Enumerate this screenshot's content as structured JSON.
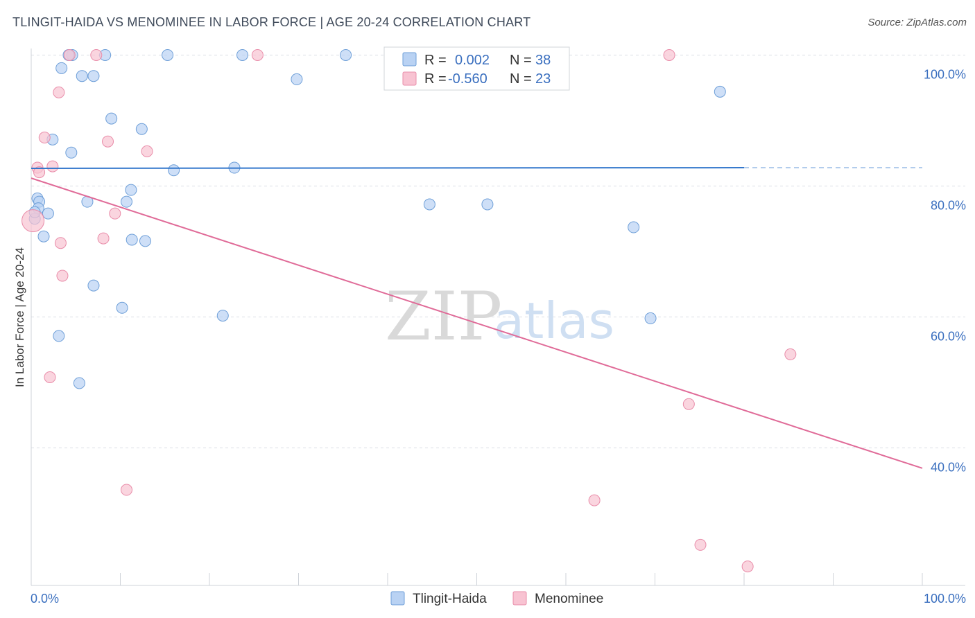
{
  "header": {
    "title": "TLINGIT-HAIDA VS MENOMINEE IN LABOR FORCE | AGE 20-24 CORRELATION CHART",
    "source": "Source: ZipAtlas.com"
  },
  "watermark": {
    "zip": "ZIP",
    "atlas": "atlas"
  },
  "colors": {
    "blue_fill": "#b9d2f3",
    "blue_stroke": "#6e9fd8",
    "blue_line": "#3377cc",
    "pink_fill": "#f8c3d2",
    "pink_stroke": "#e98ca9",
    "pink_line": "#e06b98",
    "grid": "#d9dde4",
    "tick_text": "#3a6fbf"
  },
  "legend": {
    "rows": [
      {
        "r_label": "R =",
        "r_value": "0.002",
        "n_label": "N =",
        "n_value": "38"
      },
      {
        "r_label": "R =",
        "r_value": "-0.560",
        "n_label": "N =",
        "n_value": "23"
      }
    ]
  },
  "chart_data": {
    "type": "scatter",
    "title": "TLINGIT-HAIDA VS MENOMINEE IN LABOR FORCE | AGE 20-24 CORRELATION CHART",
    "xlabel": "",
    "ylabel": "In Labor Force | Age 20-24",
    "xlim": [
      0,
      100
    ],
    "ylim": [
      19,
      101
    ],
    "x_tick_labels": [
      "0.0%",
      "100.0%"
    ],
    "y_ticks": [
      40,
      60,
      80,
      100
    ],
    "y_tick_labels": [
      "40.0%",
      "60.0%",
      "80.0%",
      "100.0%"
    ],
    "grid": true,
    "legend_position": "top-center",
    "series": [
      {
        "name": "Tlingit-Haida",
        "color": "#b9d2f3",
        "r": 0.002,
        "n": 38,
        "trend": {
          "x0": 0,
          "y0": 82.7,
          "x1": 80,
          "y1": 82.8,
          "dashed_to": 100
        },
        "points": [
          [
            4.6,
            100
          ],
          [
            4.2,
            100
          ],
          [
            8.3,
            100
          ],
          [
            15.3,
            100
          ],
          [
            23.7,
            100
          ],
          [
            35.3,
            100
          ],
          [
            3.4,
            98
          ],
          [
            5.7,
            96.8
          ],
          [
            7,
            96.8
          ],
          [
            29.8,
            96.3
          ],
          [
            77.3,
            94.4
          ],
          [
            9,
            90.3
          ],
          [
            12.4,
            88.7
          ],
          [
            2.4,
            87.1
          ],
          [
            4.5,
            85.1
          ],
          [
            16,
            82.4
          ],
          [
            22.8,
            82.8
          ],
          [
            11.2,
            79.4
          ],
          [
            0.7,
            78.1
          ],
          [
            0.9,
            77.6
          ],
          [
            6.3,
            77.6
          ],
          [
            10.7,
            77.6
          ],
          [
            44.7,
            77.2
          ],
          [
            51.2,
            77.2
          ],
          [
            0.8,
            76.6
          ],
          [
            1.9,
            75.8
          ],
          [
            67.6,
            73.7
          ],
          [
            1.4,
            72.3
          ],
          [
            11.3,
            71.8
          ],
          [
            12.8,
            71.6
          ],
          [
            7,
            64.8
          ],
          [
            10.2,
            61.4
          ],
          [
            21.5,
            60.2
          ],
          [
            69.5,
            59.8
          ],
          [
            3.1,
            57.1
          ],
          [
            5.4,
            49.9
          ],
          [
            0.4,
            75.0
          ],
          [
            0.4,
            76.0
          ]
        ]
      },
      {
        "name": "Menominee",
        "color": "#f8c3d2",
        "r": -0.56,
        "n": 23,
        "trend": {
          "x0": 0,
          "y0": 81.2,
          "x1": 100,
          "y1": 36.9
        },
        "points": [
          [
            4.3,
            100
          ],
          [
            7.3,
            100
          ],
          [
            25.4,
            100
          ],
          [
            71.6,
            100
          ],
          [
            3.1,
            94.3
          ],
          [
            1.5,
            87.4
          ],
          [
            8.6,
            86.8
          ],
          [
            13,
            85.3
          ],
          [
            0.7,
            82.8
          ],
          [
            2.4,
            83.0
          ],
          [
            0.9,
            82.1
          ],
          [
            9.4,
            75.8
          ],
          [
            0.2,
            74.7
          ],
          [
            8.1,
            72.0
          ],
          [
            3.3,
            71.3
          ],
          [
            3.5,
            66.3
          ],
          [
            85.2,
            54.3
          ],
          [
            2.1,
            50.8
          ],
          [
            73.8,
            46.7
          ],
          [
            10.7,
            33.6
          ],
          [
            63.2,
            32.0
          ],
          [
            75.1,
            25.2
          ],
          [
            80.4,
            21.9
          ]
        ]
      }
    ]
  }
}
